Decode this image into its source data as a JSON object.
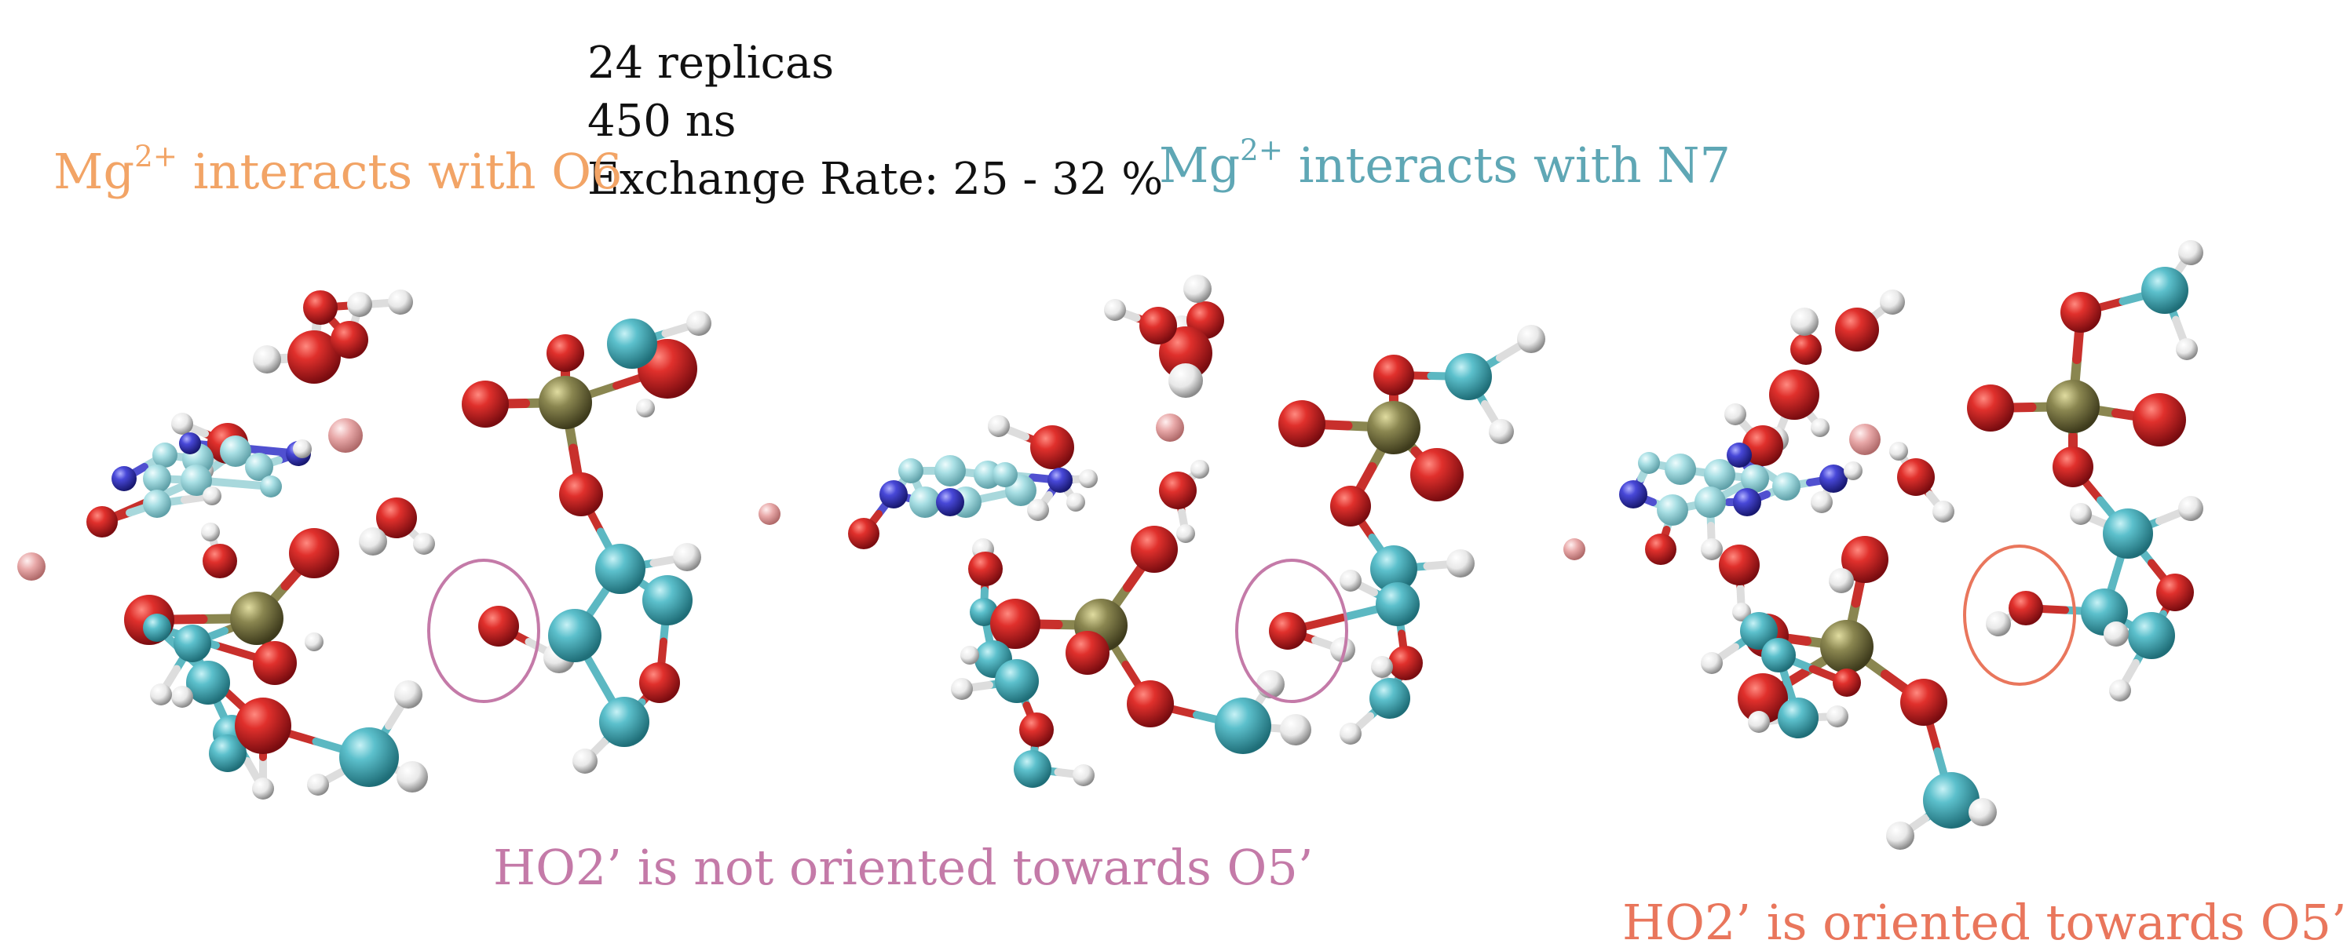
{
  "info": {
    "replicas": "24 replicas",
    "time": "450 ns",
    "exchange_rate": "Exchange Rate: 25 - 32 %"
  },
  "labels": {
    "left": {
      "prefix": "Mg",
      "superscript": "2+",
      "suffix": " interacts with O6"
    },
    "right": {
      "prefix": "Mg",
      "superscript": "2+",
      "suffix": " interacts with N7"
    },
    "not_oriented": "HO2’ is  not oriented towards O5’",
    "oriented": "HO2’ is oriented towards O5’"
  },
  "colors": {
    "oxygen": "#d0262a",
    "carbon": "#4fb8c4",
    "nitrogen": "#4848d8",
    "phosphorus": "#8a8650",
    "hydrogen": "#f2f2f2",
    "magnesium": "#e8a0a0",
    "label_o6": "#f2a466",
    "label_n7": "#5fa7b5",
    "label_not_oriented": "#c47aa8",
    "label_oriented": "#e9765c"
  }
}
